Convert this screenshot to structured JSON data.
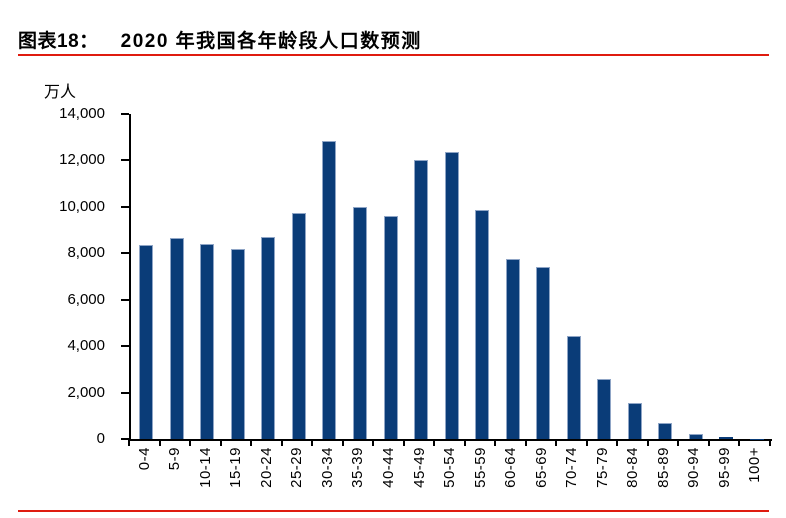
{
  "header": {
    "label": "图表18：",
    "title": "2020 年我国各年龄段人口数预测"
  },
  "chart_data": {
    "type": "bar",
    "title": "2020 年我国各年龄段人口数预测",
    "unit_label": "万人",
    "categories": [
      "0-4",
      "5-9",
      "10-14",
      "15-19",
      "20-24",
      "25-29",
      "30-34",
      "35-39",
      "40-44",
      "45-49",
      "50-54",
      "55-59",
      "60-64",
      "65-69",
      "70-74",
      "75-79",
      "80-84",
      "85-89",
      "90-94",
      "95-99",
      "100+"
    ],
    "values": [
      8350,
      8650,
      8400,
      8200,
      8700,
      9750,
      12850,
      10000,
      9600,
      12000,
      12350,
      9850,
      7750,
      7400,
      4450,
      2600,
      1550,
      700,
      200,
      70,
      10
    ],
    "xlabel": "",
    "ylabel": "万人",
    "ylim": [
      0,
      14000
    ],
    "ytick_values": [
      0,
      2000,
      4000,
      6000,
      8000,
      10000,
      12000,
      14000
    ],
    "ytick_labels": [
      "0",
      "2,000",
      "4,000",
      "6,000",
      "8,000",
      "10,000",
      "12,000",
      "14,000"
    ],
    "grid": false,
    "legend": false,
    "bar_color": "#0a3c78"
  },
  "colors": {
    "accent_red": "#df1b0f",
    "axis": "#000000",
    "bar_fill": "#0a3c78",
    "bar_border": "#8fa5c6"
  }
}
